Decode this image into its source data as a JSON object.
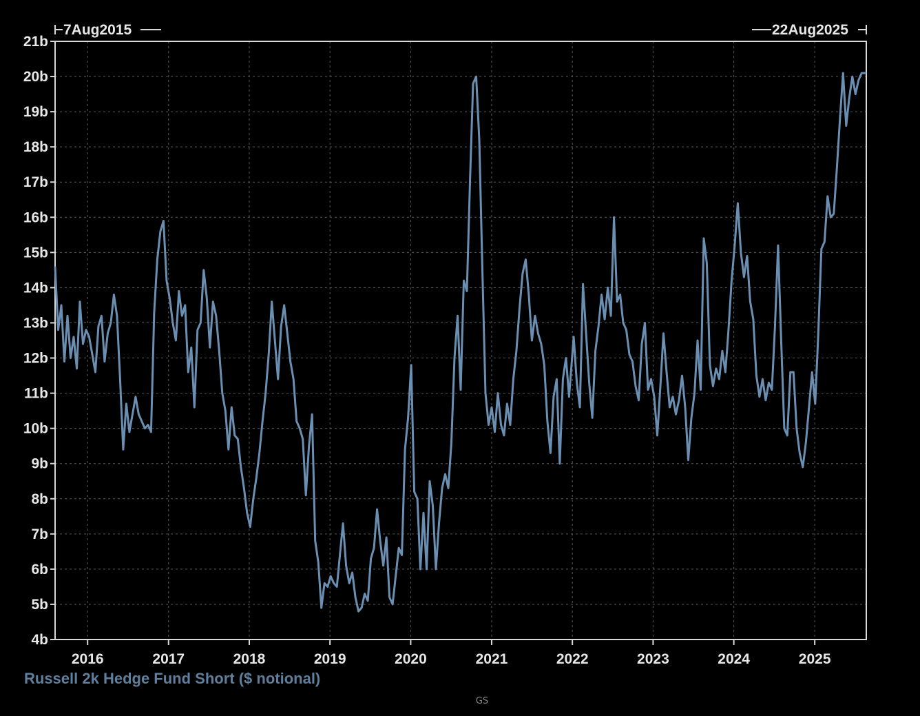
{
  "chart_data": {
    "type": "line",
    "range_start": "7Aug2015",
    "range_end": "22Aug2025",
    "y_unit_suffix": "b",
    "ylim": [
      4,
      21
    ],
    "y_ticks": [
      4,
      5,
      6,
      7,
      8,
      9,
      10,
      11,
      12,
      13,
      14,
      15,
      16,
      17,
      18,
      19,
      20,
      21
    ],
    "y_tick_labels": [
      "4b",
      "5b",
      "6b",
      "7b",
      "8b",
      "9b",
      "10b",
      "11b",
      "12b",
      "13b",
      "14b",
      "15b",
      "16b",
      "17b",
      "18b",
      "19b",
      "20b",
      "21b"
    ],
    "x_ticks": [
      "2016",
      "2017",
      "2018",
      "2019",
      "2020",
      "2021",
      "2022",
      "2023",
      "2024",
      "2025"
    ],
    "grid": true,
    "series": [
      {
        "name": "Russell 2k Hedge Fund Short ($ notional)",
        "color": "#6a8fb2",
        "points": [
          [
            "2015-08-07",
            14.6
          ],
          [
            "2015-08-21",
            12.8
          ],
          [
            "2015-09-04",
            13.5
          ],
          [
            "2015-09-18",
            11.9
          ],
          [
            "2015-10-02",
            13.2
          ],
          [
            "2015-10-16",
            12.0
          ],
          [
            "2015-10-30",
            12.6
          ],
          [
            "2015-11-13",
            11.7
          ],
          [
            "2015-11-27",
            13.6
          ],
          [
            "2015-12-11",
            12.4
          ],
          [
            "2015-12-25",
            12.8
          ],
          [
            "2016-01-08",
            12.6
          ],
          [
            "2016-01-22",
            12.1
          ],
          [
            "2016-02-05",
            11.6
          ],
          [
            "2016-02-19",
            12.9
          ],
          [
            "2016-03-04",
            13.2
          ],
          [
            "2016-03-18",
            11.9
          ],
          [
            "2016-04-01",
            12.7
          ],
          [
            "2016-04-15",
            13.0
          ],
          [
            "2016-04-29",
            13.8
          ],
          [
            "2016-05-13",
            13.2
          ],
          [
            "2016-05-27",
            11.4
          ],
          [
            "2016-06-10",
            9.4
          ],
          [
            "2016-06-24",
            10.7
          ],
          [
            "2016-07-08",
            9.9
          ],
          [
            "2016-07-22",
            10.4
          ],
          [
            "2016-08-05",
            10.9
          ],
          [
            "2016-08-19",
            10.4
          ],
          [
            "2016-09-02",
            10.2
          ],
          [
            "2016-09-16",
            10.0
          ],
          [
            "2016-09-30",
            10.1
          ],
          [
            "2016-10-14",
            9.9
          ],
          [
            "2016-10-28",
            13.3
          ],
          [
            "2016-11-11",
            14.8
          ],
          [
            "2016-11-25",
            15.6
          ],
          [
            "2016-12-09",
            15.9
          ],
          [
            "2016-12-23",
            14.2
          ],
          [
            "2017-01-06",
            13.7
          ],
          [
            "2017-01-20",
            13.0
          ],
          [
            "2017-02-03",
            12.5
          ],
          [
            "2017-02-17",
            13.9
          ],
          [
            "2017-03-03",
            13.2
          ],
          [
            "2017-03-17",
            13.5
          ],
          [
            "2017-03-31",
            11.6
          ],
          [
            "2017-04-14",
            12.3
          ],
          [
            "2017-04-28",
            10.6
          ],
          [
            "2017-05-12",
            12.8
          ],
          [
            "2017-05-26",
            13.0
          ],
          [
            "2017-06-09",
            14.5
          ],
          [
            "2017-06-23",
            13.7
          ],
          [
            "2017-07-07",
            12.3
          ],
          [
            "2017-07-21",
            13.6
          ],
          [
            "2017-08-04",
            13.2
          ],
          [
            "2017-08-18",
            12.2
          ],
          [
            "2017-09-01",
            11.0
          ],
          [
            "2017-09-15",
            10.5
          ],
          [
            "2017-09-29",
            9.4
          ],
          [
            "2017-10-13",
            10.6
          ],
          [
            "2017-10-27",
            9.8
          ],
          [
            "2017-11-10",
            9.7
          ],
          [
            "2017-11-24",
            8.9
          ],
          [
            "2017-12-08",
            8.3
          ],
          [
            "2017-12-22",
            7.6
          ],
          [
            "2018-01-05",
            7.2
          ],
          [
            "2018-01-19",
            8.0
          ],
          [
            "2018-02-02",
            8.6
          ],
          [
            "2018-02-16",
            9.3
          ],
          [
            "2018-03-02",
            10.2
          ],
          [
            "2018-03-16",
            11.0
          ],
          [
            "2018-03-30",
            12.1
          ],
          [
            "2018-04-13",
            13.6
          ],
          [
            "2018-04-27",
            12.5
          ],
          [
            "2018-05-11",
            11.4
          ],
          [
            "2018-05-25",
            12.9
          ],
          [
            "2018-06-08",
            13.5
          ],
          [
            "2018-06-22",
            12.7
          ],
          [
            "2018-07-06",
            11.9
          ],
          [
            "2018-07-20",
            11.4
          ],
          [
            "2018-08-03",
            10.2
          ],
          [
            "2018-08-17",
            10.0
          ],
          [
            "2018-08-31",
            9.7
          ],
          [
            "2018-09-14",
            8.1
          ],
          [
            "2018-09-28",
            9.5
          ],
          [
            "2018-10-12",
            10.4
          ],
          [
            "2018-10-26",
            6.8
          ],
          [
            "2018-11-09",
            6.2
          ],
          [
            "2018-11-23",
            4.9
          ],
          [
            "2018-12-07",
            5.6
          ],
          [
            "2018-12-21",
            5.5
          ],
          [
            "2019-01-04",
            5.8
          ],
          [
            "2019-01-18",
            5.6
          ],
          [
            "2019-02-01",
            5.5
          ],
          [
            "2019-02-15",
            6.4
          ],
          [
            "2019-03-01",
            7.3
          ],
          [
            "2019-03-15",
            6.1
          ],
          [
            "2019-03-29",
            5.6
          ],
          [
            "2019-04-12",
            5.9
          ],
          [
            "2019-04-26",
            5.2
          ],
          [
            "2019-05-10",
            4.8
          ],
          [
            "2019-05-24",
            4.9
          ],
          [
            "2019-06-07",
            5.3
          ],
          [
            "2019-06-21",
            5.1
          ],
          [
            "2019-07-05",
            6.3
          ],
          [
            "2019-07-19",
            6.6
          ],
          [
            "2019-08-02",
            7.7
          ],
          [
            "2019-08-16",
            6.8
          ],
          [
            "2019-08-30",
            6.1
          ],
          [
            "2019-09-13",
            6.9
          ],
          [
            "2019-09-27",
            5.2
          ],
          [
            "2019-10-11",
            5.0
          ],
          [
            "2019-10-25",
            5.8
          ],
          [
            "2019-11-08",
            6.6
          ],
          [
            "2019-11-22",
            6.4
          ],
          [
            "2019-12-06",
            9.4
          ],
          [
            "2019-12-20",
            10.3
          ],
          [
            "2020-01-03",
            11.8
          ],
          [
            "2020-01-17",
            8.2
          ],
          [
            "2020-01-31",
            8.0
          ],
          [
            "2020-02-14",
            6.0
          ],
          [
            "2020-02-28",
            7.6
          ],
          [
            "2020-03-13",
            6.0
          ],
          [
            "2020-03-27",
            8.5
          ],
          [
            "2020-04-10",
            7.8
          ],
          [
            "2020-04-24",
            6.0
          ],
          [
            "2020-05-08",
            7.3
          ],
          [
            "2020-05-22",
            8.3
          ],
          [
            "2020-06-05",
            8.7
          ],
          [
            "2020-06-19",
            8.3
          ],
          [
            "2020-07-03",
            9.6
          ],
          [
            "2020-07-17",
            12.0
          ],
          [
            "2020-07-31",
            13.2
          ],
          [
            "2020-08-14",
            11.1
          ],
          [
            "2020-08-28",
            14.2
          ],
          [
            "2020-09-11",
            13.9
          ],
          [
            "2020-09-25",
            17.0
          ],
          [
            "2020-10-09",
            19.8
          ],
          [
            "2020-10-23",
            20.0
          ],
          [
            "2020-11-06",
            18.2
          ],
          [
            "2020-11-20",
            14.5
          ],
          [
            "2020-12-04",
            11.0
          ],
          [
            "2020-12-18",
            10.1
          ],
          [
            "2021-01-01",
            10.6
          ],
          [
            "2021-01-15",
            9.9
          ],
          [
            "2021-01-29",
            11.0
          ],
          [
            "2021-02-12",
            10.1
          ],
          [
            "2021-02-26",
            9.8
          ],
          [
            "2021-03-12",
            10.7
          ],
          [
            "2021-03-26",
            10.1
          ],
          [
            "2021-04-09",
            11.4
          ],
          [
            "2021-04-23",
            12.2
          ],
          [
            "2021-05-07",
            13.4
          ],
          [
            "2021-05-21",
            14.4
          ],
          [
            "2021-06-04",
            14.8
          ],
          [
            "2021-06-18",
            13.8
          ],
          [
            "2021-07-02",
            12.5
          ],
          [
            "2021-07-16",
            13.2
          ],
          [
            "2021-07-30",
            12.7
          ],
          [
            "2021-08-13",
            12.4
          ],
          [
            "2021-08-27",
            11.8
          ],
          [
            "2021-09-10",
            10.2
          ],
          [
            "2021-09-24",
            9.3
          ],
          [
            "2021-10-08",
            10.9
          ],
          [
            "2021-10-22",
            11.4
          ],
          [
            "2021-11-05",
            9.0
          ],
          [
            "2021-11-19",
            11.4
          ],
          [
            "2021-12-03",
            12.0
          ],
          [
            "2021-12-17",
            10.9
          ],
          [
            "2022-01-07",
            12.6
          ],
          [
            "2022-01-21",
            11.3
          ],
          [
            "2022-02-04",
            10.6
          ],
          [
            "2022-02-18",
            14.1
          ],
          [
            "2022-03-04",
            12.7
          ],
          [
            "2022-03-18",
            11.3
          ],
          [
            "2022-04-01",
            10.3
          ],
          [
            "2022-04-15",
            12.2
          ],
          [
            "2022-04-29",
            12.9
          ],
          [
            "2022-05-13",
            13.8
          ],
          [
            "2022-05-27",
            13.1
          ],
          [
            "2022-06-10",
            14.0
          ],
          [
            "2022-06-24",
            13.2
          ],
          [
            "2022-07-08",
            16.0
          ],
          [
            "2022-07-22",
            13.6
          ],
          [
            "2022-08-05",
            13.8
          ],
          [
            "2022-08-19",
            13.0
          ],
          [
            "2022-09-02",
            12.8
          ],
          [
            "2022-09-16",
            12.1
          ],
          [
            "2022-09-30",
            11.9
          ],
          [
            "2022-10-14",
            11.2
          ],
          [
            "2022-10-28",
            10.8
          ],
          [
            "2022-11-11",
            12.4
          ],
          [
            "2022-11-25",
            13.0
          ],
          [
            "2022-12-09",
            11.1
          ],
          [
            "2022-12-23",
            11.4
          ],
          [
            "2023-01-06",
            10.9
          ],
          [
            "2023-01-20",
            9.8
          ],
          [
            "2023-02-03",
            11.2
          ],
          [
            "2023-02-17",
            12.7
          ],
          [
            "2023-03-03",
            11.6
          ],
          [
            "2023-03-17",
            10.6
          ],
          [
            "2023-03-31",
            10.9
          ],
          [
            "2023-04-14",
            10.4
          ],
          [
            "2023-04-28",
            10.8
          ],
          [
            "2023-05-12",
            11.5
          ],
          [
            "2023-05-26",
            10.6
          ],
          [
            "2023-06-09",
            9.1
          ],
          [
            "2023-06-23",
            10.3
          ],
          [
            "2023-07-07",
            11.0
          ],
          [
            "2023-07-21",
            12.5
          ],
          [
            "2023-08-04",
            11.1
          ],
          [
            "2023-08-18",
            15.4
          ],
          [
            "2023-09-01",
            14.7
          ],
          [
            "2023-09-15",
            11.8
          ],
          [
            "2023-09-29",
            11.2
          ],
          [
            "2023-10-13",
            11.7
          ],
          [
            "2023-10-27",
            11.4
          ],
          [
            "2023-11-10",
            12.2
          ],
          [
            "2023-11-24",
            11.6
          ],
          [
            "2023-12-08",
            12.8
          ],
          [
            "2023-12-22",
            14.2
          ],
          [
            "2024-01-05",
            15.2
          ],
          [
            "2024-01-19",
            16.4
          ],
          [
            "2024-02-02",
            15.0
          ],
          [
            "2024-02-16",
            14.3
          ],
          [
            "2024-03-01",
            14.9
          ],
          [
            "2024-03-15",
            13.6
          ],
          [
            "2024-03-29",
            13.1
          ],
          [
            "2024-04-12",
            11.5
          ],
          [
            "2024-04-26",
            10.9
          ],
          [
            "2024-05-10",
            11.4
          ],
          [
            "2024-05-24",
            10.8
          ],
          [
            "2024-06-07",
            11.3
          ],
          [
            "2024-06-21",
            11.1
          ],
          [
            "2024-07-05",
            12.9
          ],
          [
            "2024-07-19",
            15.2
          ],
          [
            "2024-08-02",
            12.5
          ],
          [
            "2024-08-16",
            10.0
          ],
          [
            "2024-08-30",
            9.8
          ],
          [
            "2024-09-13",
            11.6
          ],
          [
            "2024-09-27",
            11.6
          ],
          [
            "2024-10-11",
            10.0
          ],
          [
            "2024-10-25",
            9.3
          ],
          [
            "2024-11-08",
            8.9
          ],
          [
            "2024-11-22",
            9.6
          ],
          [
            "2024-12-06",
            10.6
          ],
          [
            "2024-12-20",
            11.6
          ],
          [
            "2025-01-03",
            10.7
          ],
          [
            "2025-01-17",
            12.7
          ],
          [
            "2025-01-31",
            15.1
          ],
          [
            "2025-02-14",
            15.3
          ],
          [
            "2025-02-28",
            16.6
          ],
          [
            "2025-03-14",
            16.0
          ],
          [
            "2025-03-28",
            16.1
          ],
          [
            "2025-04-11",
            17.4
          ],
          [
            "2025-04-25",
            18.8
          ],
          [
            "2025-05-09",
            20.1
          ],
          [
            "2025-05-23",
            18.6
          ],
          [
            "2025-06-06",
            19.4
          ],
          [
            "2025-06-20",
            20.0
          ],
          [
            "2025-07-04",
            19.5
          ],
          [
            "2025-07-18",
            19.9
          ],
          [
            "2025-08-01",
            20.1
          ],
          [
            "2025-08-22",
            20.1
          ]
        ]
      }
    ]
  },
  "footer": {
    "source": "GS"
  }
}
